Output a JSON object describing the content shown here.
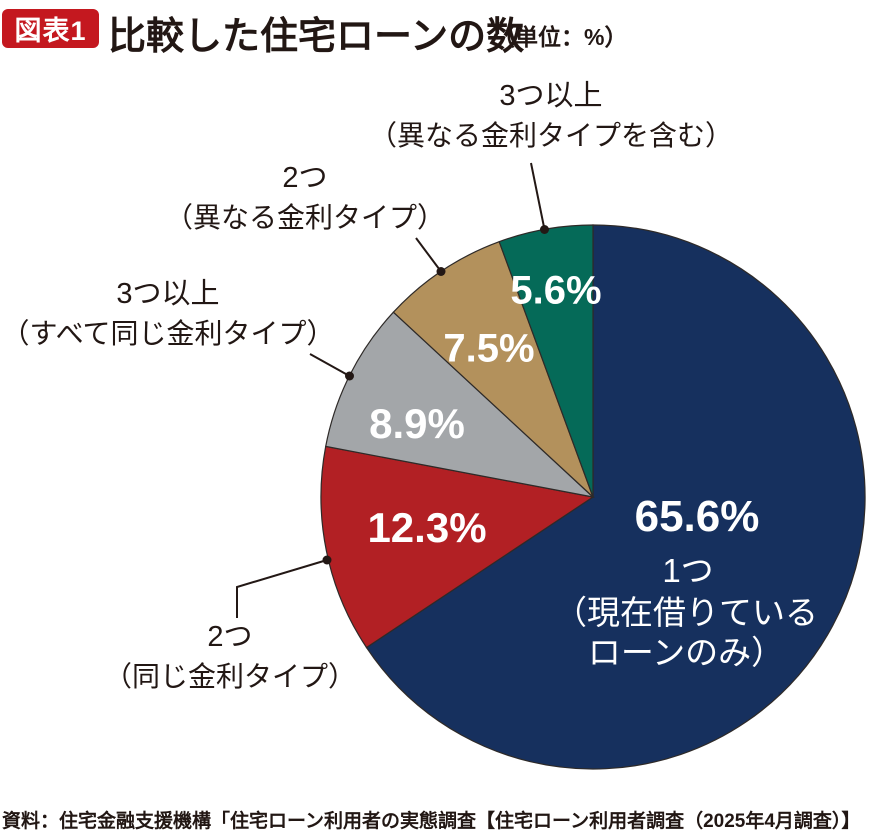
{
  "header": {
    "badge": "図表1",
    "title": "比較した住宅ローンの数",
    "unit": "（単位：%）"
  },
  "source": "資料：住宅金融支援機構「住宅ローン利用者の実態調査【住宅ローン利用者調査（2025年4月調査）】",
  "colors": {
    "badge_red": "#c4181f",
    "slice_outline": "#2e2a28",
    "leader_line": "#231815",
    "text_dark": "#221714",
    "label_white": "#ffffff"
  },
  "chart_data": {
    "type": "pie",
    "title": "比較した住宅ローンの数",
    "unit": "%",
    "start_angle_deg": 0,
    "direction": "clockwise",
    "legend_position": "callout-labels",
    "slices": [
      {
        "label": "1つ（現在借りているローンのみ）",
        "value": 65.6,
        "pct_label": "65.6%",
        "color": "#16305e",
        "inner_lines": [
          "1つ",
          "（現在借りている",
          "ローンのみ）"
        ]
      },
      {
        "label": "2つ（同じ金利タイプ）",
        "value": 12.3,
        "pct_label": "12.3%",
        "color": "#b22024"
      },
      {
        "label": "3つ以上（すべて同じ金利タイプ）",
        "value": 8.9,
        "pct_label": "8.9%",
        "color": "#a3a6a9"
      },
      {
        "label": "2つ（異なる金利タイプ）",
        "value": 7.5,
        "pct_label": "7.5%",
        "color": "#b3915c"
      },
      {
        "label": "3つ以上（異なる金利タイプを含む）",
        "value": 5.6,
        "pct_label": "5.6%",
        "color": "#056a58"
      }
    ]
  },
  "callouts": [
    {
      "slice_label": "3つ以上（異なる金利タイプを含む）",
      "lines": [
        "3つ以上",
        "（異なる金利タイプを含む）"
      ]
    },
    {
      "slice_label": "2つ（異なる金利タイプ）",
      "lines": [
        "2つ",
        "（異なる金利タイプ）"
      ]
    },
    {
      "slice_label": "3つ以上（すべて同じ金利タイプ）",
      "lines": [
        "3つ以上",
        "（すべて同じ金利タイプ）"
      ]
    },
    {
      "slice_label": "2つ（同じ金利タイプ）",
      "lines": [
        "2つ",
        "（同じ金利タイプ）"
      ]
    }
  ]
}
